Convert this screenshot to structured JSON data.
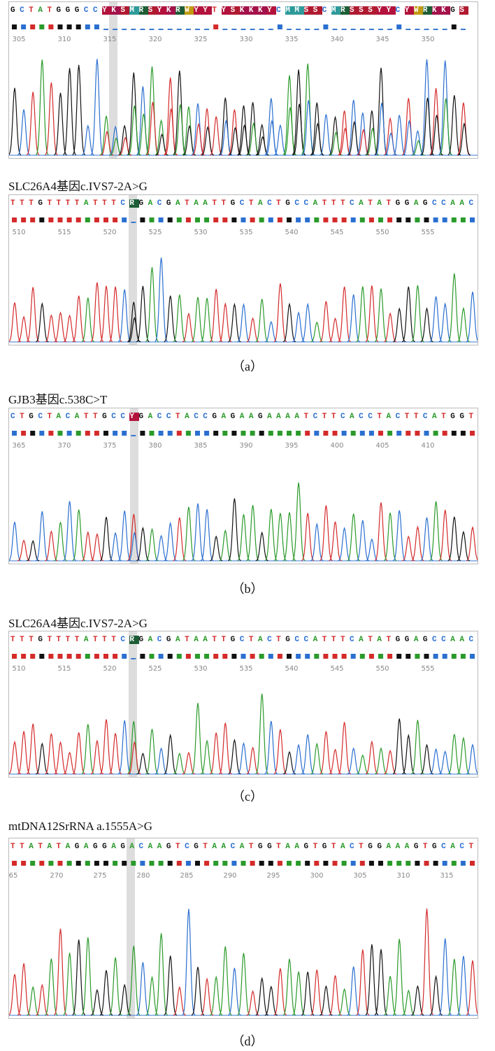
{
  "figure": {
    "panels": [
      {
        "sequence": "GCTATGGGCCYKSMRSYKRWYYTYSKKKYCMMSSCMRSSSYYCYWRKKGS",
        "positions": [
          "305",
          "310",
          "315",
          "320",
          "325",
          "330",
          "335",
          "340",
          "345",
          "350"
        ]
      },
      {
        "title": "SLC26A4基因c.IVS7-2A>G",
        "sequence": "TTTGTTTTATTTCRGACGATAATTGCTACTGCCATTTCATATGGAGCCAAC",
        "positions": [
          "510",
          "515",
          "520",
          "525",
          "530",
          "535",
          "540",
          "545",
          "550",
          "555"
        ],
        "caption": "（a）"
      },
      {
        "title": "GJB3基因c.538C>T",
        "sequence": "CTGCTACATTGCCYGACCTACCGAGAAGAAAATCTTCACCTACTTCATGGT",
        "positions": [
          "365",
          "370",
          "375",
          "380",
          "385",
          "390",
          "395",
          "400",
          "405",
          "410"
        ],
        "caption": "（b）"
      },
      {
        "title": "SLC26A4基因c.IVS7-2A>G",
        "sequence": "TTTGTTTTATTTCRGACGATAATTGCTACTGCCATTTCATATGGAGCCAAC",
        "positions": [
          "510",
          "515",
          "520",
          "525",
          "530",
          "535",
          "540",
          "545",
          "550",
          "555"
        ],
        "caption": "（c）"
      },
      {
        "title": "mtDNA12SrRNA a.1555A>G",
        "sequence": "TTATATAGAGGAGACAAGTCGTAACATGGTAAGTGTACTGGAAAGTGCACT",
        "positions": [
          "65",
          "270",
          "275",
          "280",
          "285",
          "290",
          "295",
          "300",
          "305",
          "310",
          "315"
        ],
        "caption": "（d）"
      }
    ]
  }
}
